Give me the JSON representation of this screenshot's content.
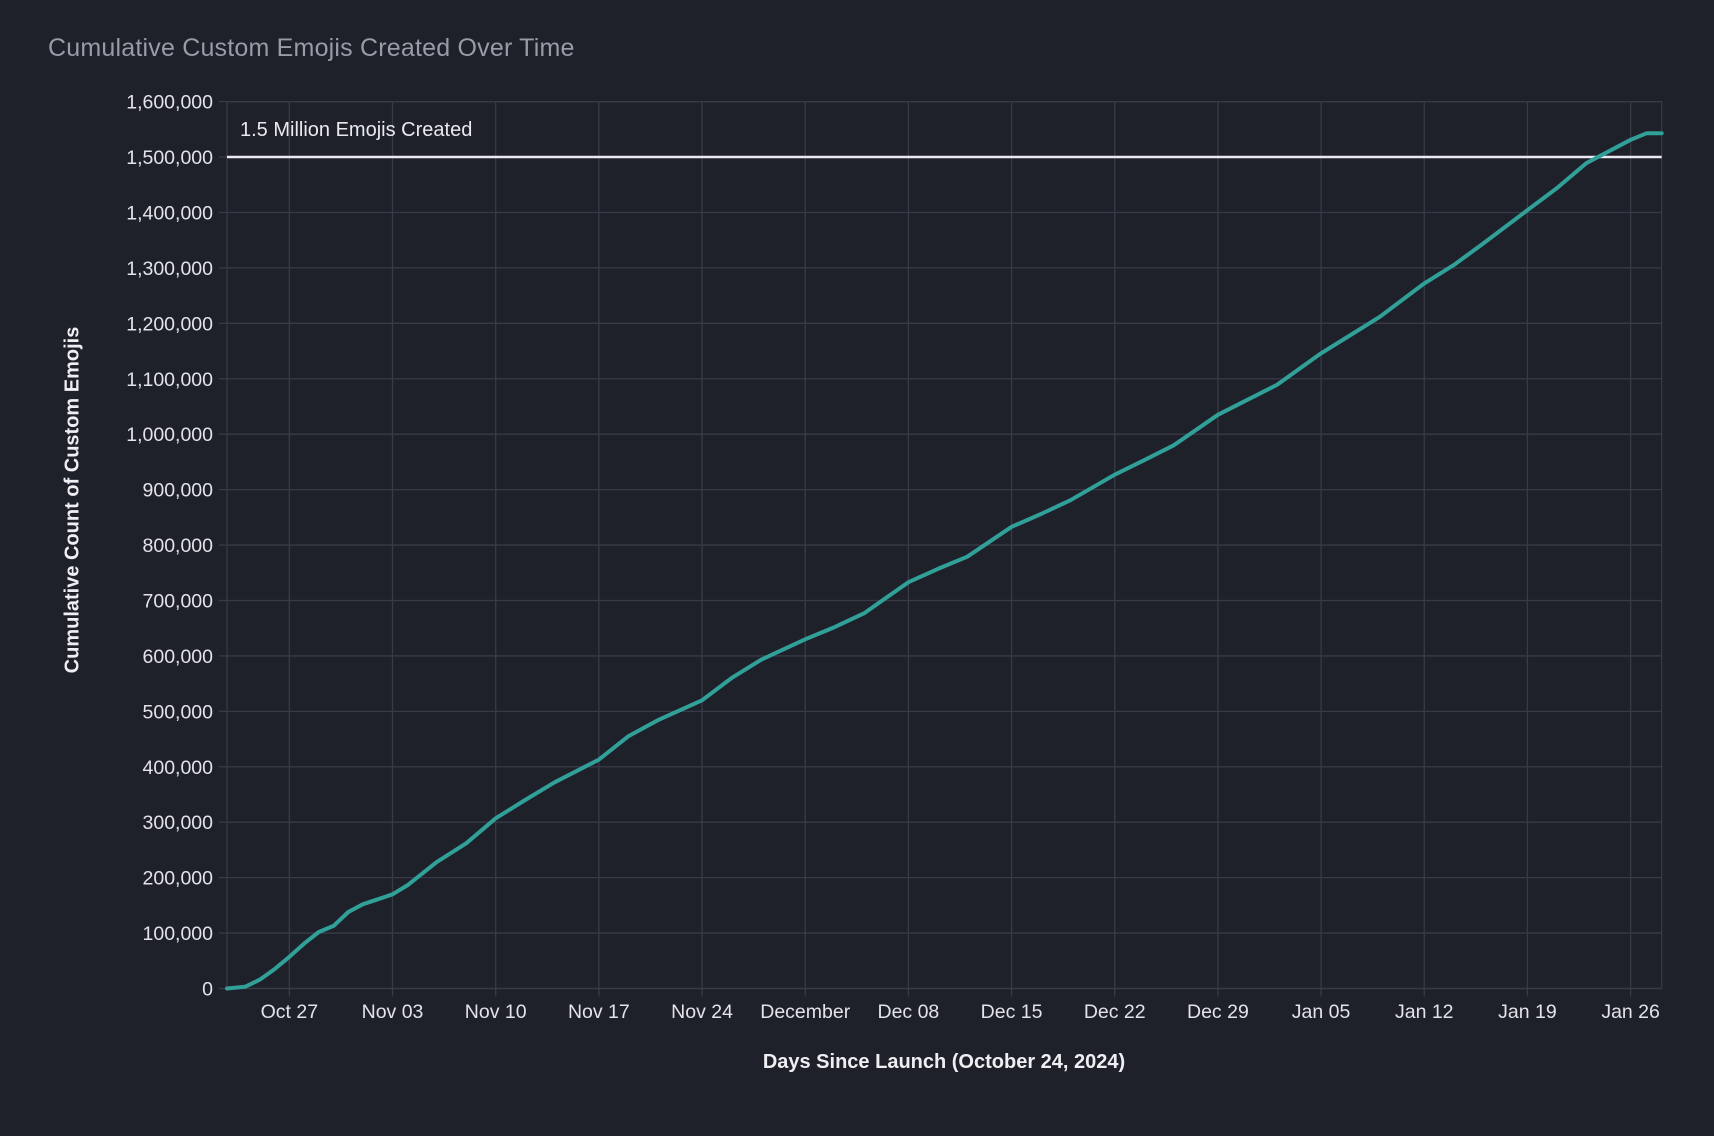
{
  "page": {
    "title": "Cumulative Custom Emojis Created Over Time"
  },
  "colors": {
    "background": "#1e202a",
    "grid": "#383a48",
    "frame": "#383a48",
    "line": "#30a098",
    "reference_line": "#e9ebf0",
    "tick_label_text": "#e2e4ea",
    "axis_title_text": "#edeff3",
    "chart_title_text": "#969ca8",
    "annotation_text": "#e8eaee"
  },
  "chart_data": {
    "type": "line",
    "title": "Cumulative Custom Emojis Created Over Time",
    "xlabel": "Days Since Launch (October 24, 2024)",
    "ylabel": "Cumulative Count of Custom Emojis",
    "launch_date": "October 24, 2024",
    "x_axis_unit": "days since launch (rendered as date ticks)",
    "x_range_days": [
      -1.23,
      96.11
    ],
    "ylim": [
      0,
      1600000
    ],
    "grid": true,
    "legend": "none",
    "reference_line": {
      "value": 1500000,
      "label": "1.5 Million Emojis Created"
    },
    "x_ticks": [
      {
        "day": 3,
        "label": "Oct 27"
      },
      {
        "day": 10,
        "label": "Nov 03"
      },
      {
        "day": 17,
        "label": "Nov 10"
      },
      {
        "day": 24,
        "label": "Nov 17"
      },
      {
        "day": 31,
        "label": "Nov 24"
      },
      {
        "day": 38,
        "label": "December"
      },
      {
        "day": 45,
        "label": "Dec 08"
      },
      {
        "day": 52,
        "label": "Dec 15"
      },
      {
        "day": 59,
        "label": "Dec 22"
      },
      {
        "day": 66,
        "label": "Dec 29"
      },
      {
        "day": 73,
        "label": "Jan 05"
      },
      {
        "day": 80,
        "label": "Jan 12"
      },
      {
        "day": 87,
        "label": "Jan 19"
      },
      {
        "day": 94,
        "label": "Jan 26"
      }
    ],
    "y_ticks": [
      {
        "value": 0,
        "label": "0"
      },
      {
        "value": 100000,
        "label": "100,000"
      },
      {
        "value": 200000,
        "label": "200,000"
      },
      {
        "value": 300000,
        "label": "300,000"
      },
      {
        "value": 400000,
        "label": "400,000"
      },
      {
        "value": 500000,
        "label": "500,000"
      },
      {
        "value": 600000,
        "label": "600,000"
      },
      {
        "value": 700000,
        "label": "700,000"
      },
      {
        "value": 800000,
        "label": "800,000"
      },
      {
        "value": 900000,
        "label": "900,000"
      },
      {
        "value": 1000000,
        "label": "1,000,000"
      },
      {
        "value": 1100000,
        "label": "1,100,000"
      },
      {
        "value": 1200000,
        "label": "1,200,000"
      },
      {
        "value": 1300000,
        "label": "1,300,000"
      },
      {
        "value": 1400000,
        "label": "1,400,000"
      },
      {
        "value": 1500000,
        "label": "1,500,000"
      },
      {
        "value": 1600000,
        "label": "1,600,000"
      }
    ],
    "series": [
      {
        "name": "Cumulative Custom Emojis",
        "x_days": [
          -1.23,
          0,
          1,
          2,
          3,
          4,
          5,
          6,
          7,
          8,
          9,
          10,
          11,
          13,
          15,
          17,
          19,
          21,
          24,
          26,
          28,
          31,
          33,
          35,
          38,
          40,
          42,
          45,
          47,
          49,
          52,
          54,
          56,
          59,
          61,
          63,
          66,
          68,
          70,
          73,
          75,
          77,
          80,
          82,
          84,
          87,
          89,
          91,
          94,
          95.1,
          96.11
        ],
        "values": [
          0,
          3000,
          16000,
          35000,
          57000,
          81000,
          102000,
          113000,
          138000,
          152000,
          161000,
          170000,
          186000,
          228000,
          262000,
          307000,
          340000,
          372000,
          413000,
          455000,
          484000,
          520000,
          560000,
          593000,
          630000,
          652000,
          677000,
          733000,
          757000,
          779000,
          833000,
          856000,
          881000,
          927000,
          953000,
          980000,
          1035000,
          1062000,
          1089000,
          1146000,
          1179000,
          1212000,
          1272000,
          1305000,
          1344000,
          1404000,
          1444000,
          1489000,
          1531000,
          1543000,
          1543000
        ]
      }
    ],
    "final_value": 1543000
  }
}
